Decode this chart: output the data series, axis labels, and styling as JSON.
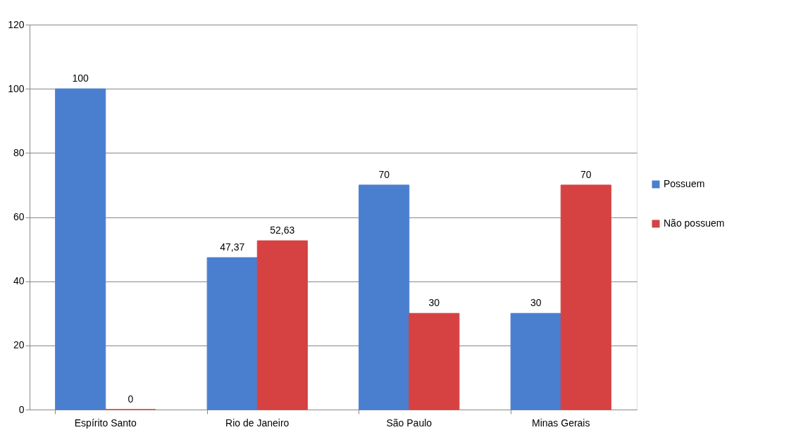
{
  "chart_data": {
    "type": "bar",
    "categories": [
      "Espírito Santo",
      "Rio de Janeiro",
      "São Paulo",
      "Minas Gerais"
    ],
    "series": [
      {
        "name": "Possuem",
        "color": "#4a7fd0",
        "values": [
          100,
          47.37,
          70,
          30
        ],
        "value_labels": [
          "100",
          "47,37",
          "70",
          "30"
        ]
      },
      {
        "name": "Não possuem",
        "color": "#d64242",
        "values": [
          0,
          52.63,
          30,
          70
        ],
        "value_labels": [
          "0",
          "52,63",
          "30",
          "70"
        ]
      }
    ],
    "ylim": [
      0,
      120
    ],
    "yticks": [
      0,
      20,
      40,
      60,
      80,
      100,
      120
    ],
    "grid": "y",
    "legend": "right"
  }
}
